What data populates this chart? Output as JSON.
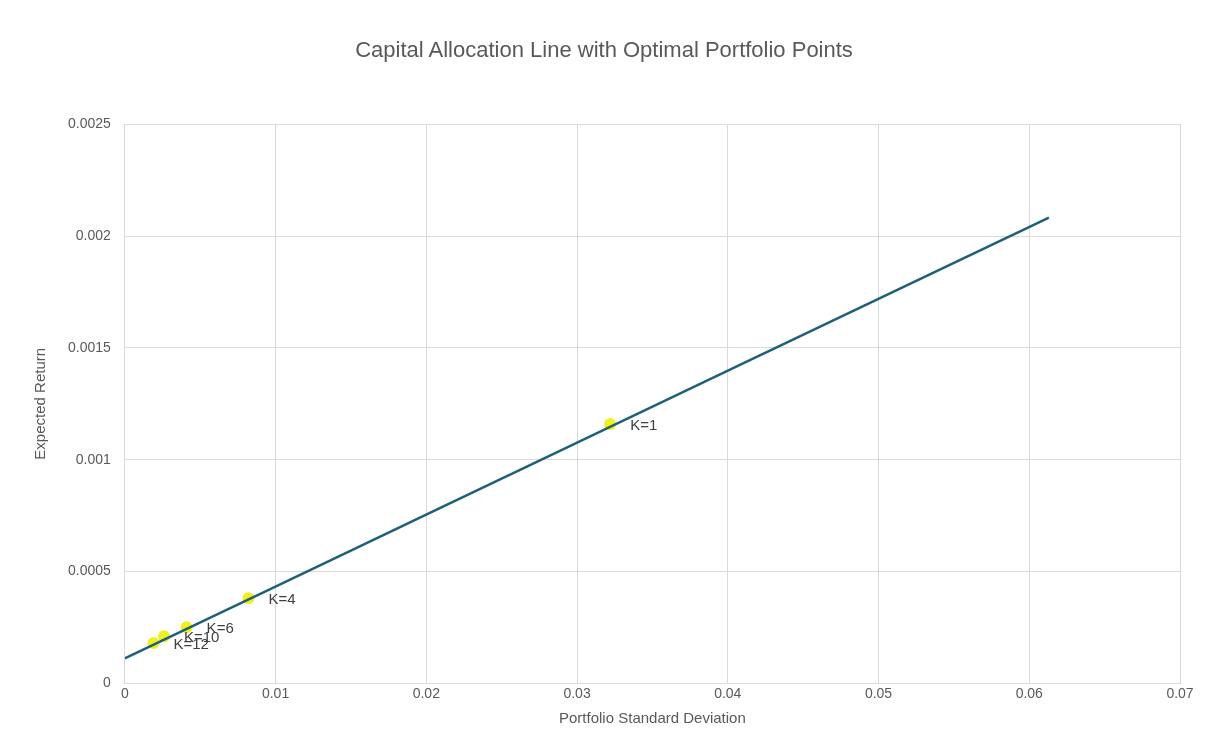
{
  "chart_data": {
    "type": "scatter",
    "title": "Capital Allocation Line with Optimal Portfolio Points",
    "xlabel": "Portfolio Standard Deviation",
    "ylabel": "Expected Return",
    "xlim": [
      0,
      0.07
    ],
    "xticks": [
      0,
      0.01,
      0.02,
      0.03,
      0.04,
      0.05,
      0.06,
      0.07
    ],
    "ylim": [
      0,
      0.0025
    ],
    "yticks": [
      0,
      0.0005,
      0.001,
      0.0015,
      0.002,
      0.0025
    ],
    "grid": true,
    "legend": false,
    "series": [
      {
        "type": "line",
        "color": "#1f5f7a",
        "x": [
          0,
          0.0613
        ],
        "values": [
          0.000111,
          0.002083
        ],
        "marker": "none"
      },
      {
        "type": "scatter",
        "color": "#f0f020",
        "x": [
          0.0322,
          0.0082,
          0.0041,
          0.0026,
          0.0019
        ],
        "values": [
          0.00116,
          0.00038,
          0.00025,
          0.00021,
          0.00018
        ],
        "marker": "circle"
      }
    ],
    "annotations": [
      {
        "text": "K=1",
        "x": 0.0322,
        "y": 0.00116
      },
      {
        "text": "K=4",
        "x": 0.0082,
        "y": 0.00038
      },
      {
        "text": "K=6",
        "x": 0.0041,
        "y": 0.00025
      },
      {
        "text": "K=10",
        "x": 0.0026,
        "y": 0.00021
      },
      {
        "text": "K=12",
        "x": 0.0019,
        "y": 0.00018
      }
    ]
  }
}
